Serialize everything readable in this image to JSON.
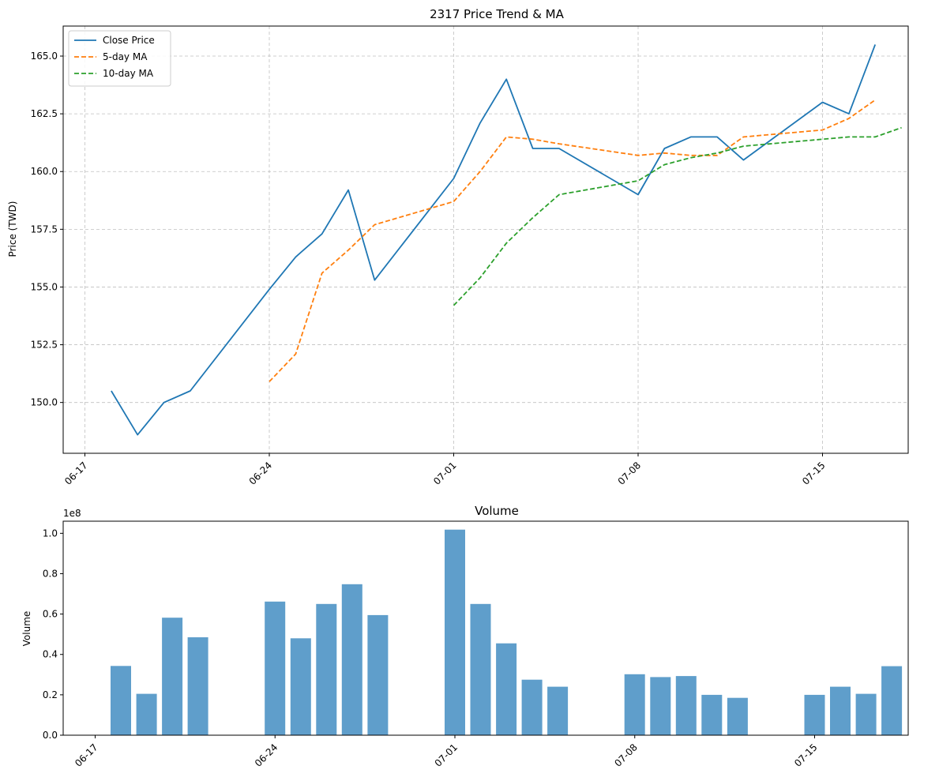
{
  "chart_data": [
    {
      "type": "line",
      "title": "2317 Price Trend & MA",
      "xlabel": "",
      "ylabel": "Price (TWD)",
      "x": [
        "06-18",
        "06-19",
        "06-20",
        "06-21",
        "06-24",
        "06-25",
        "06-26",
        "06-27",
        "06-28",
        "07-01",
        "07-02",
        "07-03",
        "07-04",
        "07-05",
        "07-08",
        "07-09",
        "07-10",
        "07-11",
        "07-12",
        "07-15",
        "07-16",
        "07-17",
        "07-18",
        "07-19"
      ],
      "x_ticks": [
        "06-17",
        "06-24",
        "07-01",
        "07-08",
        "07-15"
      ],
      "y_ticks": [
        "150.0",
        "152.5",
        "155.0",
        "157.5",
        "160.0",
        "162.5",
        "165.0"
      ],
      "ylim": [
        147.8,
        166.3
      ],
      "grid": true,
      "legend_position": "upper-left",
      "series": [
        {
          "name": "Close Price",
          "color": "#1f77b4",
          "style": "solid",
          "values": [
            150.5,
            148.6,
            150.0,
            150.5,
            154.9,
            156.3,
            157.3,
            159.2,
            155.3,
            159.7,
            162.1,
            164.0,
            161.0,
            161.0,
            159.0,
            161.0,
            161.5,
            161.5,
            160.5,
            163.0,
            162.5,
            165.5,
            null,
            null
          ]
        },
        {
          "name": "5-day MA",
          "color": "#ff7f0e",
          "style": "dashed",
          "values": [
            null,
            null,
            null,
            null,
            150.9,
            152.1,
            155.6,
            156.6,
            157.7,
            158.7,
            160.0,
            161.5,
            161.4,
            161.2,
            160.7,
            160.8,
            160.7,
            160.7,
            161.5,
            161.8,
            162.3,
            163.1,
            null,
            null
          ]
        },
        {
          "name": "10-day MA",
          "color": "#2ca02c",
          "style": "dashed",
          "values": [
            null,
            null,
            null,
            null,
            null,
            null,
            null,
            null,
            null,
            154.2,
            155.4,
            156.9,
            158.0,
            159.0,
            159.6,
            160.3,
            160.6,
            160.8,
            161.1,
            161.4,
            161.5,
            161.5,
            161.9,
            null
          ]
        }
      ]
    },
    {
      "type": "bar",
      "title": "Volume",
      "xlabel": "",
      "ylabel": "Volume",
      "scale_label": "1e8",
      "x_ticks": [
        "06-17",
        "06-24",
        "07-01",
        "07-08",
        "07-15"
      ],
      "y_ticks": [
        "0.0",
        "0.2",
        "0.4",
        "0.6",
        "0.8",
        "1.0"
      ],
      "ylim": [
        0,
        1.06
      ],
      "color": "#5f9ecb",
      "categories": [
        "06-18",
        "06-19",
        "06-20",
        "06-21",
        "06-24",
        "06-25",
        "06-26",
        "06-27",
        "06-28",
        "07-01",
        "07-02",
        "07-03",
        "07-04",
        "07-05",
        "07-08",
        "07-09",
        "07-10",
        "07-11",
        "07-12",
        "07-15",
        "07-16",
        "07-17",
        "07-18",
        "07-19"
      ],
      "values": [
        0.343,
        0.205,
        0.582,
        0.485,
        0.662,
        0.48,
        0.65,
        0.748,
        0.595,
        1.018,
        0.65,
        0.455,
        0.275,
        0.24,
        0.302,
        0.288,
        0.293,
        0.2,
        0.185,
        0.2,
        0.24,
        0.205,
        0.342,
        0.0
      ]
    }
  ]
}
